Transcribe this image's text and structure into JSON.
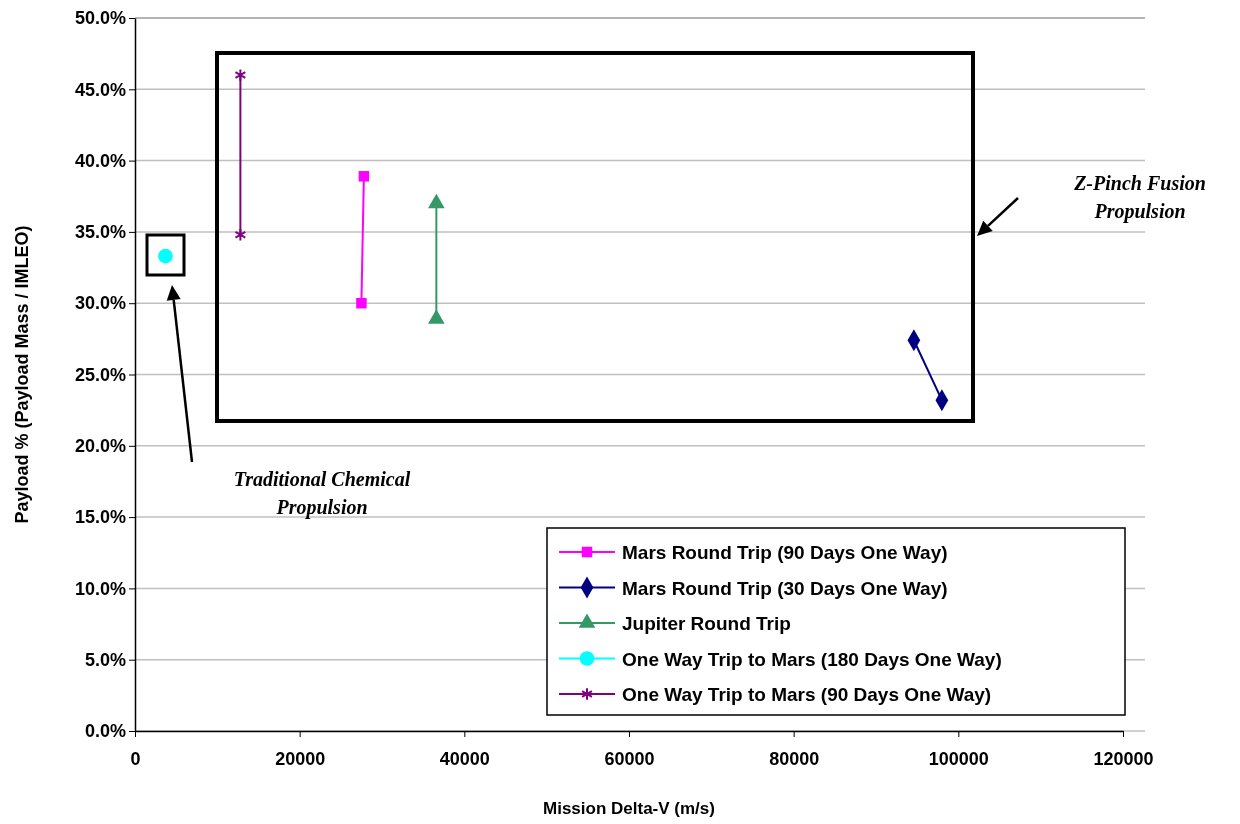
{
  "chart_data": {
    "type": "line",
    "xlabel": "Mission Delta-V (m/s)",
    "ylabel": "Payload % (Payload Mass / IMLEO)",
    "xlim": [
      0,
      120000
    ],
    "xticks": [
      0,
      20000,
      40000,
      60000,
      80000,
      100000,
      120000
    ],
    "ylim": [
      0,
      50
    ],
    "yticks": [
      {
        "value": 0,
        "label": "0.0%"
      },
      {
        "value": 5,
        "label": "5.0%"
      },
      {
        "value": 10,
        "label": "10.0%"
      },
      {
        "value": 15,
        "label": "15.0%"
      },
      {
        "value": 20,
        "label": "20.0%"
      },
      {
        "value": 25,
        "label": "25.0%"
      },
      {
        "value": 30,
        "label": "30.0%"
      },
      {
        "value": 35,
        "label": "35.0%"
      },
      {
        "value": 40,
        "label": "40.0%"
      },
      {
        "value": 45,
        "label": "45.0%"
      },
      {
        "value": 50,
        "label": "50.0%"
      }
    ],
    "grid": "y",
    "legend": "bottom right",
    "series": [
      {
        "name": "Mars Round Trip (90 Days One Way)",
        "color": "#ff00ff",
        "marker": "square",
        "x": [
          27800,
          27500
        ],
        "values": [
          38.9,
          30.0
        ]
      },
      {
        "name": "Mars Round Trip (30 Days One Way)",
        "color": "#000080",
        "marker": "diamond",
        "x": [
          94600,
          98000
        ],
        "values": [
          27.4,
          23.2
        ]
      },
      {
        "name": "Jupiter Round Trip",
        "color": "#339966",
        "marker": "triangle",
        "x": [
          36600,
          36600
        ],
        "values": [
          37.0,
          28.9
        ]
      },
      {
        "name": "One Way Trip to Mars (180 Days One Way)",
        "color": "#00ffff",
        "marker": "circle",
        "x": [
          3700
        ],
        "values": [
          33.3
        ]
      },
      {
        "name": "One Way Trip to Mars (90 Days One Way)",
        "color": "#800080",
        "marker": "cross",
        "x": [
          12800,
          12800
        ],
        "values": [
          46.0,
          34.8
        ]
      }
    ],
    "annotations": [
      "Traditional Chemical Propulsion",
      "Z-Pinch Fusion Propulsion"
    ]
  }
}
